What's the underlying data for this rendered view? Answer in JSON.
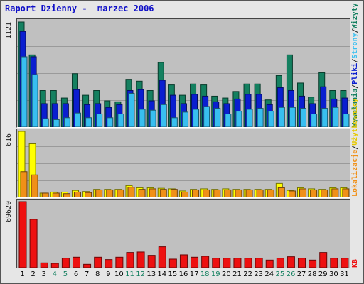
{
  "title": "Raport Dzienny -  marzec 2006",
  "colors": {
    "wizyty": "#148060",
    "strony": "#0a1ed0",
    "pliki": "#38bff0",
    "kb": "#ee1010",
    "lokalizacje": "#f09018",
    "uzytkownicy": "#ffff00",
    "weekday_label": "#000000",
    "weekend_label": "#148060"
  },
  "right_labels": {
    "top": [
      "Wywołania",
      "/",
      "Pliki",
      "/",
      "Strony",
      "/",
      "Wizyty"
    ],
    "middle": [
      "Lokalizacje",
      "/",
      "Użytkownicy"
    ],
    "bottom": [
      "KB"
    ]
  },
  "chart_data": [
    {
      "type": "bar",
      "ymax_label": "1121",
      "ylim": [
        0,
        1121
      ],
      "categories": [
        "1",
        "2",
        "3",
        "4",
        "5",
        "6",
        "7",
        "8",
        "9",
        "10",
        "11",
        "12",
        "13",
        "14",
        "15",
        "16",
        "17",
        "18",
        "19",
        "20",
        "21",
        "22",
        "23",
        "24",
        "25",
        "26",
        "27",
        "28",
        "29",
        "30",
        "31"
      ],
      "series": [
        {
          "values": [
            1121,
            770,
            390,
            390,
            310,
            570,
            340,
            390,
            280,
            270,
            510,
            490,
            390,
            690,
            450,
            340,
            460,
            450,
            330,
            310,
            380,
            460,
            460,
            290,
            550,
            770,
            470,
            320,
            580,
            390,
            390
          ]
        },
        {
          "values": [
            1020,
            750,
            250,
            250,
            250,
            400,
            240,
            250,
            210,
            240,
            390,
            400,
            280,
            500,
            340,
            250,
            350,
            330,
            270,
            250,
            300,
            350,
            350,
            240,
            420,
            390,
            330,
            250,
            430,
            300,
            310
          ]
        },
        {
          "values": [
            750,
            560,
            90,
            80,
            100,
            150,
            100,
            140,
            100,
            140,
            360,
            190,
            180,
            240,
            100,
            160,
            190,
            220,
            200,
            140,
            170,
            190,
            200,
            170,
            210,
            210,
            200,
            140,
            200,
            210,
            140
          ]
        }
      ]
    },
    {
      "type": "bar",
      "ymax_label": "616",
      "ylim": [
        0,
        616
      ],
      "categories": [
        "1",
        "2",
        "3",
        "4",
        "5",
        "6",
        "7",
        "8",
        "9",
        "10",
        "11",
        "12",
        "13",
        "14",
        "15",
        "16",
        "17",
        "18",
        "19",
        "20",
        "21",
        "22",
        "23",
        "24",
        "25",
        "26",
        "27",
        "28",
        "29",
        "30",
        "31"
      ],
      "series": [
        {
          "values": [
            616,
            500,
            40,
            50,
            50,
            65,
            55,
            75,
            75,
            75,
            110,
            90,
            90,
            85,
            80,
            60,
            75,
            80,
            75,
            80,
            75,
            75,
            75,
            75,
            130,
            65,
            90,
            80,
            75,
            90,
            90
          ]
        },
        {
          "values": [
            240,
            210,
            40,
            40,
            35,
            50,
            45,
            70,
            70,
            70,
            95,
            75,
            80,
            75,
            75,
            50,
            70,
            70,
            70,
            70,
            70,
            70,
            70,
            70,
            90,
            60,
            80,
            70,
            70,
            80,
            80
          ]
        }
      ]
    },
    {
      "type": "bar",
      "ymax_label": "69620",
      "ylim": [
        0,
        69620
      ],
      "categories": [
        "1",
        "2",
        "3",
        "4",
        "5",
        "6",
        "7",
        "8",
        "9",
        "10",
        "11",
        "12",
        "13",
        "14",
        "15",
        "16",
        "17",
        "18",
        "19",
        "20",
        "21",
        "22",
        "23",
        "24",
        "25",
        "26",
        "27",
        "28",
        "29",
        "30",
        "31"
      ],
      "series": [
        {
          "values": [
            69620,
            51000,
            5000,
            4500,
            10000,
            11000,
            3500,
            11000,
            8500,
            11000,
            16000,
            16500,
            13000,
            22000,
            9000,
            13500,
            11000,
            12000,
            10000,
            10000,
            10000,
            10000,
            10000,
            8000,
            10000,
            11500,
            10000,
            8000,
            16000,
            10000,
            10000
          ]
        }
      ]
    }
  ],
  "weekend_days": [
    "4",
    "5",
    "11",
    "12",
    "18",
    "19",
    "25",
    "26"
  ]
}
